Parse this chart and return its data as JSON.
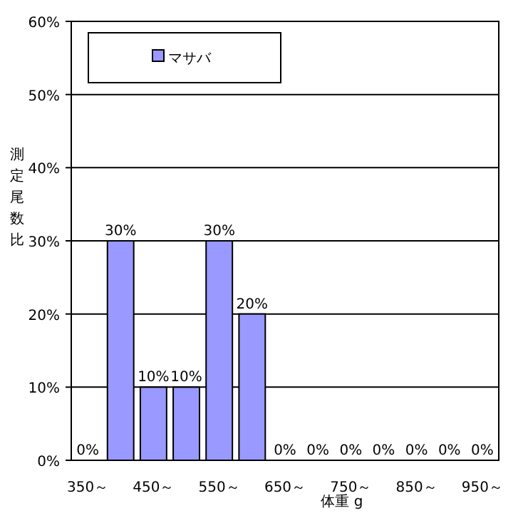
{
  "chart_data": {
    "type": "bar",
    "xlabel": "体重 g",
    "ylabel": "測定尾数比",
    "categories": [
      "350～",
      null,
      "450～",
      null,
      "550～",
      null,
      "650～",
      null,
      "750～",
      null,
      "850～",
      null,
      "950～"
    ],
    "series": [
      {
        "name": "マサバ",
        "color": "#9999ff",
        "values": [
          0,
          30,
          10,
          10,
          30,
          20,
          0,
          0,
          0,
          0,
          0,
          0,
          0
        ],
        "value_labels": [
          "0%",
          "30%",
          "10%",
          "10%",
          "30%",
          "20%",
          "0%",
          "0%",
          "0%",
          "0%",
          "0%",
          "0%",
          "0%"
        ]
      }
    ],
    "ylim": [
      0,
      60
    ],
    "yticks": [
      {
        "value": 0,
        "label": "0%"
      },
      {
        "value": 10,
        "label": "10%"
      },
      {
        "value": 20,
        "label": "20%"
      },
      {
        "value": 30,
        "label": "30%"
      },
      {
        "value": 40,
        "label": "40%"
      },
      {
        "value": 50,
        "label": "50%"
      },
      {
        "value": 60,
        "label": "60%"
      }
    ],
    "grid": "y",
    "legend": "top left"
  }
}
